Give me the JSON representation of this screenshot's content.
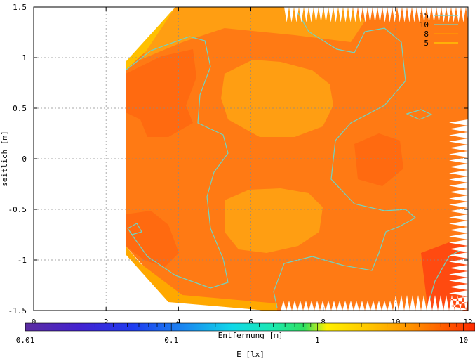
{
  "chart_data": {
    "type": "heatmap",
    "title": "",
    "xlabel": "Entfernung [m]",
    "ylabel": "seitlich [m]",
    "xlim": [
      0,
      12
    ],
    "ylim": [
      -1.5,
      1.5
    ],
    "x_ticks": [
      "0",
      "2",
      "4",
      "6",
      "8",
      "10",
      "12"
    ],
    "x_tick_values": [
      0,
      2,
      4,
      6,
      8,
      10,
      12
    ],
    "y_ticks": [
      "1.5",
      "1",
      "0.5",
      "0",
      "-0.5",
      "-1",
      "-1.5"
    ],
    "y_tick_values": [
      1.5,
      1,
      0.5,
      0,
      -0.5,
      -1,
      -1.5
    ],
    "grid": true,
    "legend_position": "top-right",
    "contour_legend": [
      {
        "label": "15",
        "color": "#6fd4c4"
      },
      {
        "label": "10",
        "color": "#6fd4c4"
      },
      {
        "label": "8",
        "color": "#ff9a00"
      },
      {
        "label": "5",
        "color": "#ffd000"
      }
    ],
    "colorbar": {
      "label": "E [lx]",
      "scale": "log",
      "range": [
        0.01,
        12
      ],
      "tick_labels": [
        "0.01",
        "0.1",
        "1",
        "10"
      ],
      "tick_values": [
        0.01,
        0.1,
        1,
        10
      ]
    },
    "regions": [
      {
        "name": "field",
        "value": 11,
        "color": "#ff7a14"
      },
      {
        "name": "bright-upper-left",
        "value": 13,
        "color": "#ff6a10"
      },
      {
        "name": "bright-lower-left",
        "value": 13,
        "color": "#ff6a10"
      },
      {
        "name": "dim-upper-center",
        "value": 9,
        "color": "#ff9e12"
      },
      {
        "name": "dim-lower-center",
        "value": 9,
        "color": "#ff9e12"
      },
      {
        "name": "dim-top-strip",
        "value": 9,
        "color": "#ff9e12"
      },
      {
        "name": "edge-upper",
        "value": 6,
        "color": "#ffc000"
      },
      {
        "name": "edge-lower",
        "value": 7,
        "color": "#ffa800"
      }
    ]
  }
}
